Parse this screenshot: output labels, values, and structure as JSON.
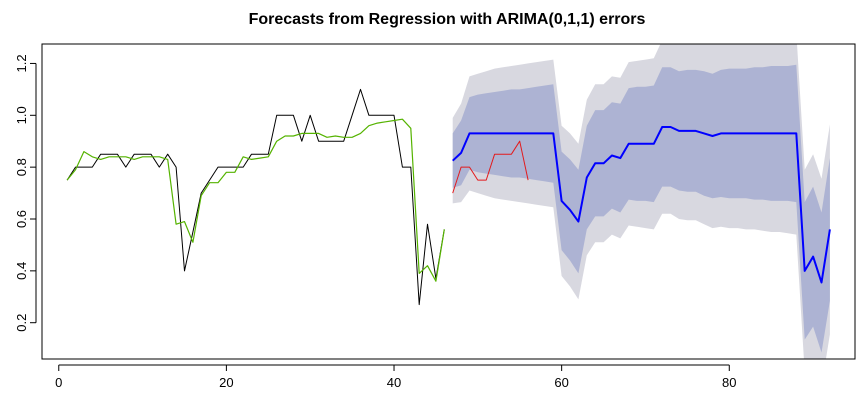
{
  "chart_data": {
    "type": "line",
    "title": "Forecasts from Regression with ARIMA(0,1,1) errors",
    "xlabel": "",
    "ylabel": "",
    "xlim": [
      -2,
      95
    ],
    "ylim": [
      0.06,
      1.275
    ],
    "xticks": [
      0,
      20,
      40,
      60,
      80
    ],
    "yticks": [
      0.2,
      0.4,
      0.6,
      0.8,
      1.0,
      1.2
    ],
    "ytick_labels": [
      "0.2",
      "0.4",
      "0.6",
      "0.8",
      "1.0",
      "1.2"
    ],
    "grid": false,
    "colors": {
      "observed": "#000000",
      "fitted": "#55b300",
      "test_actual": "#e31a1c",
      "forecast_mean": "#0000ff",
      "band_80": "#adb3d3",
      "band_95": "#d8d8e0"
    },
    "series": [
      {
        "key": "observed",
        "x": [
          1,
          2,
          3,
          4,
          5,
          6,
          7,
          8,
          9,
          10,
          11,
          12,
          13,
          14,
          15,
          16,
          17,
          18,
          19,
          20,
          21,
          22,
          23,
          24,
          25,
          26,
          27,
          28,
          29,
          30,
          31,
          32,
          33,
          34,
          35,
          36,
          37,
          38,
          39,
          40,
          41,
          42,
          43,
          44,
          45,
          46
        ],
        "values": [
          0.75,
          0.8,
          0.8,
          0.8,
          0.85,
          0.85,
          0.85,
          0.8,
          0.85,
          0.85,
          0.85,
          0.8,
          0.85,
          0.8,
          0.4,
          0.55,
          0.7,
          0.75,
          0.8,
          0.8,
          0.8,
          0.8,
          0.85,
          0.85,
          0.85,
          1.0,
          1.0,
          1.0,
          0.9,
          1.0,
          0.9,
          0.9,
          0.9,
          0.9,
          1.0,
          1.1,
          1.0,
          1.0,
          1.0,
          1.0,
          0.8,
          0.8,
          0.27,
          0.58,
          0.37,
          0.56
        ]
      },
      {
        "key": "fitted",
        "x": [
          1,
          2,
          3,
          4,
          5,
          6,
          7,
          8,
          9,
          10,
          11,
          12,
          13,
          14,
          15,
          16,
          17,
          18,
          19,
          20,
          21,
          22,
          23,
          24,
          25,
          26,
          27,
          28,
          29,
          30,
          31,
          32,
          33,
          34,
          35,
          36,
          37,
          38,
          39,
          40,
          41,
          42,
          43,
          44,
          45,
          46
        ],
        "values": [
          0.75,
          0.79,
          0.86,
          0.84,
          0.83,
          0.84,
          0.84,
          0.84,
          0.83,
          0.84,
          0.84,
          0.84,
          0.83,
          0.58,
          0.59,
          0.51,
          0.69,
          0.74,
          0.74,
          0.78,
          0.78,
          0.84,
          0.83,
          0.835,
          0.84,
          0.9,
          0.92,
          0.92,
          0.93,
          0.93,
          0.93,
          0.915,
          0.92,
          0.915,
          0.915,
          0.93,
          0.96,
          0.97,
          0.975,
          0.98,
          0.985,
          0.95,
          0.39,
          0.42,
          0.36,
          0.56
        ]
      },
      {
        "key": "test_actual",
        "x": [
          47,
          48,
          49,
          50,
          51,
          52,
          53,
          54,
          55,
          56
        ],
        "values": [
          0.7,
          0.8,
          0.8,
          0.75,
          0.75,
          0.85,
          0.85,
          0.85,
          0.9,
          0.75
        ]
      },
      {
        "key": "forecast_mean",
        "x": [
          47,
          48,
          49,
          50,
          51,
          52,
          53,
          54,
          55,
          56,
          57,
          58,
          59,
          60,
          61,
          62,
          63,
          64,
          65,
          66,
          67,
          68,
          69,
          70,
          71,
          72,
          73,
          74,
          75,
          76,
          77,
          78,
          79,
          80,
          81,
          82,
          83,
          84,
          85,
          86,
          87,
          88,
          89,
          90,
          91,
          92
        ],
        "values": [
          0.825,
          0.855,
          0.93,
          0.93,
          0.93,
          0.93,
          0.93,
          0.93,
          0.93,
          0.93,
          0.93,
          0.93,
          0.93,
          0.67,
          0.635,
          0.59,
          0.76,
          0.815,
          0.815,
          0.845,
          0.835,
          0.89,
          0.89,
          0.89,
          0.89,
          0.955,
          0.955,
          0.94,
          0.94,
          0.94,
          0.93,
          0.92,
          0.93,
          0.93,
          0.93,
          0.93,
          0.93,
          0.93,
          0.93,
          0.93,
          0.93,
          0.93,
          0.4,
          0.455,
          0.355,
          0.56
        ]
      }
    ],
    "bands": {
      "x": [
        47,
        48,
        49,
        50,
        51,
        52,
        53,
        54,
        55,
        56,
        57,
        58,
        59,
        60,
        61,
        62,
        63,
        64,
        65,
        66,
        67,
        68,
        69,
        70,
        71,
        72,
        73,
        74,
        75,
        76,
        77,
        78,
        79,
        80,
        81,
        82,
        83,
        84,
        85,
        86,
        87,
        88,
        89,
        90,
        91,
        92
      ],
      "lower_95": [
        0.66,
        0.665,
        0.71,
        0.7,
        0.69,
        0.68,
        0.675,
        0.67,
        0.665,
        0.66,
        0.655,
        0.65,
        0.645,
        0.38,
        0.34,
        0.29,
        0.46,
        0.51,
        0.51,
        0.54,
        0.525,
        0.575,
        0.57,
        0.565,
        0.56,
        0.62,
        0.62,
        0.6,
        0.595,
        0.595,
        0.58,
        0.565,
        0.57,
        0.565,
        0.565,
        0.56,
        0.56,
        0.555,
        0.55,
        0.55,
        0.545,
        0.54,
        0.01,
        0.06,
        -0.045,
        0.155
      ],
      "lower_80": [
        0.72,
        0.73,
        0.79,
        0.78,
        0.775,
        0.77,
        0.765,
        0.76,
        0.76,
        0.755,
        0.75,
        0.745,
        0.74,
        0.48,
        0.44,
        0.39,
        0.56,
        0.61,
        0.61,
        0.64,
        0.625,
        0.675,
        0.67,
        0.67,
        0.665,
        0.725,
        0.725,
        0.71,
        0.705,
        0.705,
        0.69,
        0.68,
        0.685,
        0.68,
        0.68,
        0.68,
        0.675,
        0.675,
        0.67,
        0.67,
        0.67,
        0.665,
        0.135,
        0.185,
        0.085,
        0.285
      ],
      "upper_80": [
        0.93,
        0.98,
        1.07,
        1.08,
        1.085,
        1.09,
        1.095,
        1.1,
        1.1,
        1.105,
        1.11,
        1.115,
        1.12,
        0.86,
        0.83,
        0.79,
        0.96,
        1.02,
        1.02,
        1.05,
        1.045,
        1.105,
        1.11,
        1.11,
        1.115,
        1.185,
        1.185,
        1.17,
        1.175,
        1.175,
        1.17,
        1.16,
        1.175,
        1.18,
        1.18,
        1.18,
        1.185,
        1.185,
        1.19,
        1.19,
        1.19,
        1.195,
        0.665,
        0.725,
        0.625,
        0.835
      ],
      "upper_95": [
        0.99,
        1.045,
        1.15,
        1.16,
        1.17,
        1.18,
        1.185,
        1.19,
        1.195,
        1.2,
        1.205,
        1.21,
        1.215,
        0.96,
        0.93,
        0.89,
        1.06,
        1.12,
        1.12,
        1.15,
        1.145,
        1.205,
        1.21,
        1.215,
        1.22,
        1.29,
        1.29,
        1.28,
        1.285,
        1.285,
        1.28,
        1.275,
        1.29,
        1.295,
        1.295,
        1.3,
        1.3,
        1.305,
        1.31,
        1.31,
        1.315,
        1.32,
        0.79,
        0.85,
        0.755,
        0.965
      ]
    }
  }
}
